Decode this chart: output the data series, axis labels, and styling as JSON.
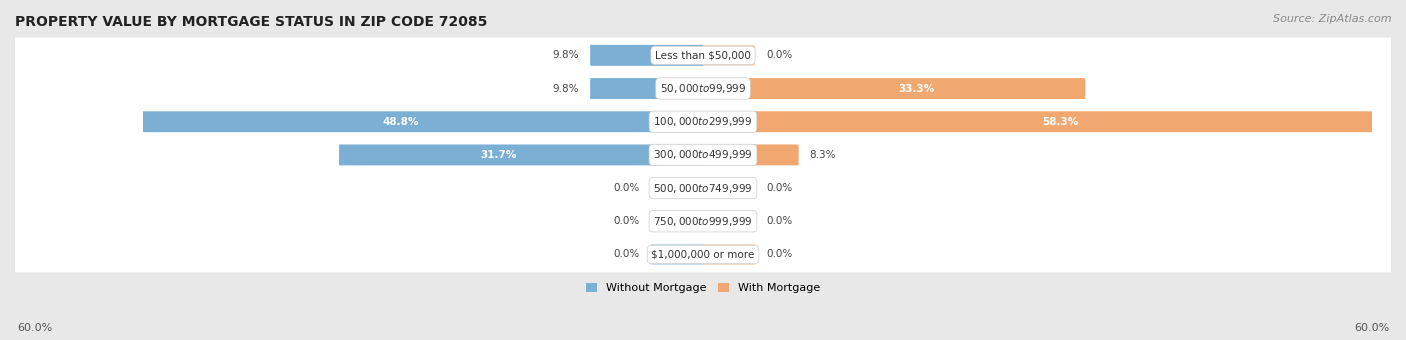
{
  "title": "PROPERTY VALUE BY MORTGAGE STATUS IN ZIP CODE 72085",
  "source": "Source: ZipAtlas.com",
  "categories": [
    "Less than $50,000",
    "$50,000 to $99,999",
    "$100,000 to $299,999",
    "$300,000 to $499,999",
    "$500,000 to $749,999",
    "$750,000 to $999,999",
    "$1,000,000 or more"
  ],
  "without_mortgage": [
    9.8,
    9.8,
    48.8,
    31.7,
    0.0,
    0.0,
    0.0
  ],
  "with_mortgage": [
    0.0,
    33.3,
    58.3,
    8.3,
    0.0,
    0.0,
    0.0
  ],
  "without_mortgage_color": "#7bafd4",
  "with_mortgage_color": "#f0a870",
  "without_mortgage_label": "Without Mortgage",
  "with_mortgage_label": "With Mortgage",
  "axis_limit": 60.0,
  "axis_label_left": "60.0%",
  "axis_label_right": "60.0%",
  "background_color": "#e8e8e8",
  "row_bg_color": "#f5f5f5",
  "title_fontsize": 10,
  "source_fontsize": 8,
  "bar_height": 0.55,
  "stub_size": 4.5
}
